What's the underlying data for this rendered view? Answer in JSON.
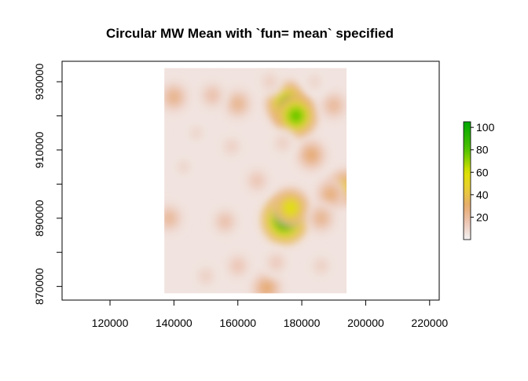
{
  "chart_data": {
    "type": "heatmap",
    "title": "Circular MW Mean with `fun= mean` specified",
    "xlabel": "",
    "ylabel": "",
    "xlim": [
      105000,
      223000
    ],
    "ylim": [
      866000,
      936000
    ],
    "raster_extent": {
      "x": [
        137000,
        194000
      ],
      "y": [
        868000,
        934000
      ]
    },
    "x_ticks": [
      {
        "value": 120000,
        "label": "120000"
      },
      {
        "value": 140000,
        "label": "140000"
      },
      {
        "value": 160000,
        "label": "160000"
      },
      {
        "value": 180000,
        "label": "180000"
      },
      {
        "value": 200000,
        "label": "200000"
      },
      {
        "value": 220000,
        "label": "220000"
      }
    ],
    "y_ticks": [
      {
        "value": 870000,
        "label": "870000"
      },
      {
        "value": 880000,
        "label": ""
      },
      {
        "value": 890000,
        "label": "890000"
      },
      {
        "value": 900000,
        "label": ""
      },
      {
        "value": 910000,
        "label": "910000"
      },
      {
        "value": 920000,
        "label": ""
      },
      {
        "value": 930000,
        "label": "930000"
      }
    ],
    "legend": {
      "placement": "right",
      "range": [
        0,
        105
      ],
      "ticks": [
        {
          "value": 20,
          "label": "20"
        },
        {
          "value": 40,
          "label": "40"
        },
        {
          "value": 60,
          "label": "60"
        },
        {
          "value": 80,
          "label": "80"
        },
        {
          "value": 100,
          "label": "100"
        }
      ]
    },
    "hotspots": [
      {
        "x": 174700,
        "y": 889500,
        "value": 100
      },
      {
        "x": 176500,
        "y": 893000,
        "value": 60
      },
      {
        "x": 175500,
        "y": 923500,
        "value": 78
      },
      {
        "x": 178200,
        "y": 920000,
        "value": 80
      },
      {
        "x": 193500,
        "y": 899000,
        "value": 45
      },
      {
        "x": 183000,
        "y": 908500,
        "value": 30
      },
      {
        "x": 189000,
        "y": 897000,
        "value": 28
      },
      {
        "x": 186000,
        "y": 890000,
        "value": 24
      },
      {
        "x": 169000,
        "y": 869500,
        "value": 30
      },
      {
        "x": 140000,
        "y": 925500,
        "value": 25
      },
      {
        "x": 138500,
        "y": 890000,
        "value": 22
      },
      {
        "x": 190000,
        "y": 923000,
        "value": 22
      },
      {
        "x": 160000,
        "y": 923500,
        "value": 24
      },
      {
        "x": 152000,
        "y": 926000,
        "value": 18
      },
      {
        "x": 156000,
        "y": 889000,
        "value": 18
      },
      {
        "x": 166000,
        "y": 901000,
        "value": 16
      },
      {
        "x": 160000,
        "y": 876000,
        "value": 16
      },
      {
        "x": 172000,
        "y": 877000,
        "value": 14
      },
      {
        "x": 150000,
        "y": 873000,
        "value": 12
      },
      {
        "x": 143000,
        "y": 905000,
        "value": 10
      },
      {
        "x": 186000,
        "y": 876000,
        "value": 12
      },
      {
        "x": 158000,
        "y": 911000,
        "value": 12
      },
      {
        "x": 174000,
        "y": 912000,
        "value": 12
      },
      {
        "x": 147000,
        "y": 915000,
        "value": 10
      },
      {
        "x": 184000,
        "y": 930000,
        "value": 10
      },
      {
        "x": 170000,
        "y": 930000,
        "value": 12
      }
    ],
    "grid": false
  }
}
